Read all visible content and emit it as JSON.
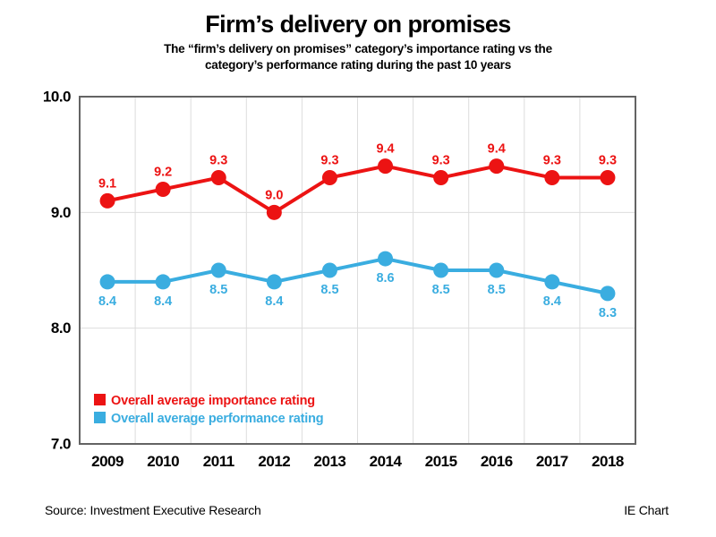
{
  "header": {
    "title": "Firm’s delivery on promises",
    "subtitle_line1": "The “firm’s delivery on promises” category’s importance rating vs the",
    "subtitle_line2": "category’s performance rating during the past 10 years"
  },
  "chart_data": {
    "type": "line",
    "categories": [
      "2009",
      "2010",
      "2011",
      "2012",
      "2013",
      "2014",
      "2015",
      "2016",
      "2017",
      "2018"
    ],
    "series": [
      {
        "key": "importance",
        "name": "Overall average importance rating",
        "color": "#ec1313",
        "values": [
          9.1,
          9.2,
          9.3,
          9.0,
          9.3,
          9.4,
          9.3,
          9.4,
          9.3,
          9.3
        ],
        "label_position": "above"
      },
      {
        "key": "performance",
        "name": "Overall average performance rating",
        "color": "#3aade0",
        "values": [
          8.4,
          8.4,
          8.5,
          8.4,
          8.5,
          8.6,
          8.5,
          8.5,
          8.4,
          8.3
        ],
        "label_position": "below"
      }
    ],
    "ylim": [
      7.0,
      10.0
    ],
    "yticks": [
      7.0,
      8.0,
      9.0,
      10.0
    ],
    "ytick_labels": [
      "7.0",
      "8.0",
      "9.0",
      "10.0"
    ],
    "grid": true,
    "legend_position": "inside-bottom-left",
    "title": "Firm’s delivery on promises",
    "xlabel": "",
    "ylabel": ""
  },
  "footer": {
    "source": "Source: Investment Executive Research",
    "credit": "IE Chart"
  },
  "colors": {
    "grid": "#dddddd",
    "border": "#636363",
    "text": "#000000",
    "background": "#ffffff"
  }
}
